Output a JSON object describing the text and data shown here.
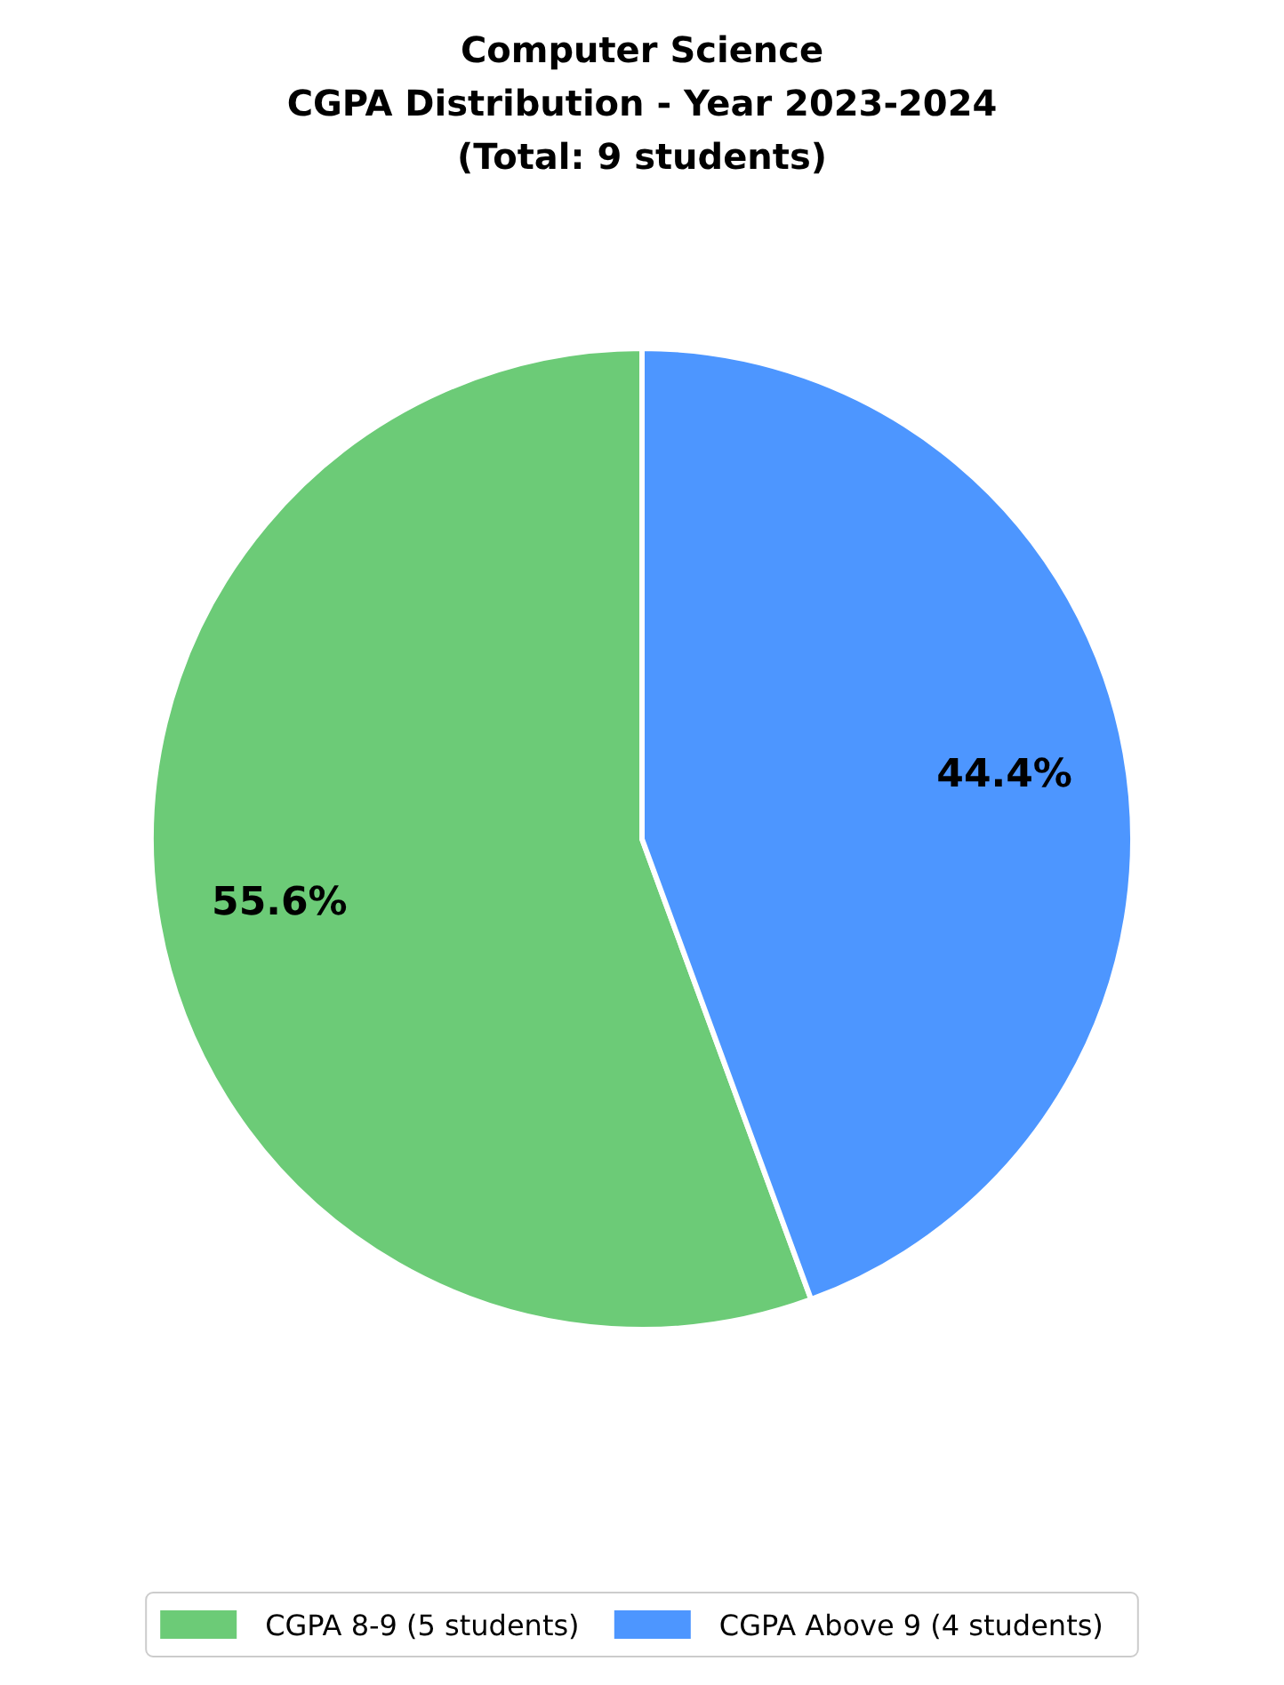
{
  "chart_data": {
    "type": "pie",
    "title": "Computer Science\nCGPA Distribution - Year 2023-2024\n(Total: 9 students)",
    "categories": [
      "CGPA 8-9 (5 students)",
      "CGPA Above 9 (4 students)"
    ],
    "values": [
      55.6,
      44.4
    ],
    "colors": [
      "#6ccb77",
      "#4d96ff"
    ],
    "value_labels": [
      "55.6%",
      "44.4%"
    ],
    "legend": "bottom"
  }
}
